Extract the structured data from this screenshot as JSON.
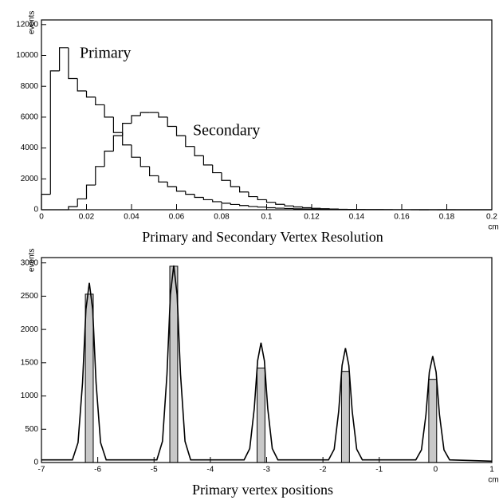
{
  "chart_data": [
    {
      "type": "histogram",
      "title": "Primary and Secondary Vertex Resolution",
      "ylabel": "events",
      "xunit": "cm",
      "annotations": [
        "Primary",
        "Secondary"
      ],
      "bins": [
        0,
        0.004,
        0.008,
        0.012,
        0.016,
        0.02,
        0.024,
        0.028,
        0.032,
        0.036,
        0.04,
        0.044,
        0.048,
        0.052,
        0.056,
        0.06,
        0.064,
        0.068,
        0.072,
        0.076,
        0.08,
        0.084,
        0.088,
        0.092,
        0.096,
        0.1,
        0.104,
        0.108,
        0.112,
        0.116,
        0.12,
        0.124,
        0.128,
        0.132,
        0.136,
        0.14,
        0.144,
        0.148,
        0.152,
        0.156,
        0.16,
        0.164,
        0.168,
        0.172,
        0.176,
        0.18,
        0.184,
        0.188,
        0.192,
        0.196,
        0.2
      ],
      "series": [
        {
          "color": "#000000",
          "values": [
            1000,
            9000,
            10500,
            8500,
            7700,
            7300,
            6800,
            6000,
            5000,
            4200,
            3400,
            2800,
            2200,
            1800,
            1500,
            1200,
            1000,
            800,
            650,
            520,
            420,
            340,
            270,
            210,
            170,
            130,
            100,
            80,
            60,
            45,
            35,
            25,
            20,
            15,
            10,
            8,
            6,
            5,
            4,
            3,
            2,
            2,
            1,
            1,
            1,
            0,
            0,
            0,
            0,
            0
          ]
        },
        {
          "color": "#000000",
          "values": [
            0,
            0,
            0,
            200,
            700,
            1600,
            2800,
            3800,
            4800,
            5600,
            6100,
            6300,
            6300,
            6000,
            5400,
            4800,
            4100,
            3500,
            2900,
            2400,
            1900,
            1500,
            1150,
            850,
            650,
            480,
            350,
            250,
            180,
            130,
            90,
            65,
            45,
            30,
            20,
            14,
            10,
            7,
            5,
            3,
            2,
            2,
            1,
            1,
            0,
            0,
            0,
            0,
            0,
            0
          ]
        }
      ],
      "xlim": [
        0,
        0.2
      ],
      "xticks": [
        0,
        0.02,
        0.04,
        0.06,
        0.08,
        0.1,
        0.12,
        0.14,
        0.16,
        0.18,
        0.2
      ],
      "ylim": [
        0,
        12300
      ],
      "yticks": [
        0,
        2000,
        4000,
        6000,
        8000,
        10000,
        12000
      ]
    },
    {
      "type": "combo",
      "title": "Primary vertex positions",
      "ylabel": "events",
      "xunit": "cm",
      "series": [
        {
          "type": "bar",
          "color": "#c8c8c8",
          "x": [
            -6.15,
            -4.65,
            -3.1,
            -1.6,
            -0.05
          ],
          "values": [
            2530,
            2950,
            1420,
            1370,
            1250
          ]
        },
        {
          "type": "line",
          "color": "#000000",
          "x": [
            -7,
            -6.45,
            -6.35,
            -6.27,
            -6.21,
            -6.15,
            -6.09,
            -6.03,
            -5.95,
            -5.85,
            -4.95,
            -4.85,
            -4.77,
            -4.71,
            -4.65,
            -4.59,
            -4.53,
            -4.45,
            -4.35,
            -3.4,
            -3.3,
            -3.22,
            -3.16,
            -3.1,
            -3.04,
            -2.98,
            -2.9,
            -2.8,
            -1.9,
            -1.8,
            -1.72,
            -1.66,
            -1.6,
            -1.54,
            -1.48,
            -1.4,
            -1.3,
            -0.35,
            -0.25,
            -0.17,
            -0.11,
            -0.05,
            0.01,
            0.07,
            0.15,
            0.25,
            1
          ],
          "values": [
            40,
            40,
            300,
            1200,
            2300,
            2700,
            2300,
            1200,
            300,
            40,
            40,
            320,
            1330,
            2520,
            2960,
            2520,
            1330,
            320,
            40,
            40,
            210,
            810,
            1530,
            1800,
            1530,
            810,
            210,
            40,
            40,
            200,
            770,
            1460,
            1720,
            1460,
            770,
            200,
            40,
            40,
            190,
            720,
            1360,
            1600,
            1360,
            720,
            190,
            40,
            20
          ]
        }
      ],
      "xlim": [
        -7,
        1
      ],
      "xticks": [
        -7,
        -6,
        -5,
        -4,
        -3,
        -2,
        -1,
        0,
        1
      ],
      "ylim": [
        0,
        3080
      ],
      "yticks": [
        0,
        500,
        1000,
        1500,
        2000,
        2500,
        3000
      ]
    }
  ]
}
